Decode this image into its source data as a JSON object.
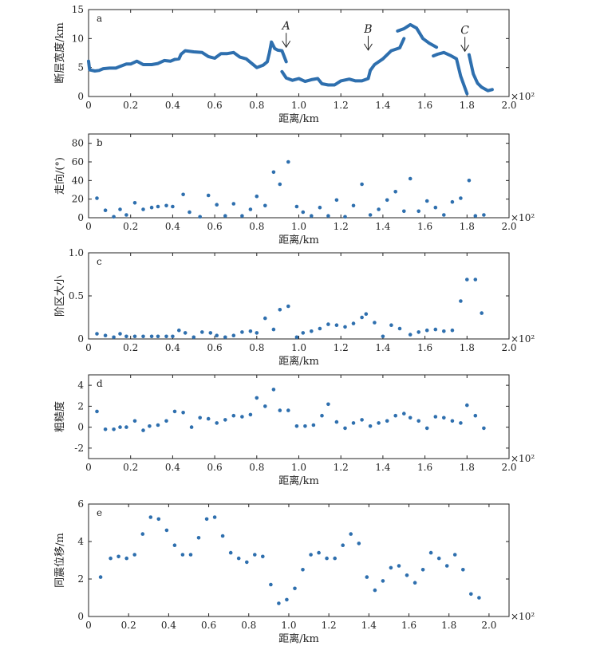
{
  "chart_data": [
    {
      "id": "a",
      "type": "line",
      "panel_letter": "a",
      "ylabel": "断层宽度/km",
      "xlabel": "距离/km",
      "multiplier": "×10²",
      "xlim": [
        0,
        2.0
      ],
      "ylim": [
        0,
        15
      ],
      "xticks": [
        "0",
        "0.2",
        "0.4",
        "0.6",
        "0.8",
        "1.0",
        "1.2",
        "1.4",
        "1.6",
        "1.8",
        "2.0"
      ],
      "yticks": [
        "0",
        "5",
        "10",
        "15"
      ],
      "color": "#2e6fae",
      "annotations": [
        {
          "label": "A",
          "x": 0.94,
          "y": 8.5
        },
        {
          "label": "B",
          "x": 1.33,
          "y": 8.0
        },
        {
          "label": "C",
          "x": 1.79,
          "y": 7.8
        }
      ],
      "series": [
        {
          "points": [
            [
              0.0,
              6.1
            ],
            [
              0.005,
              4.6
            ],
            [
              0.03,
              4.4
            ],
            [
              0.05,
              4.5
            ],
            [
              0.07,
              4.8
            ],
            [
              0.1,
              4.9
            ],
            [
              0.13,
              4.9
            ],
            [
              0.15,
              5.2
            ],
            [
              0.18,
              5.6
            ],
            [
              0.2,
              5.6
            ],
            [
              0.23,
              6.1
            ],
            [
              0.26,
              5.5
            ],
            [
              0.3,
              5.5
            ],
            [
              0.33,
              5.7
            ],
            [
              0.36,
              6.2
            ],
            [
              0.39,
              6.1
            ],
            [
              0.41,
              6.4
            ],
            [
              0.43,
              6.5
            ],
            [
              0.44,
              7.3
            ],
            [
              0.46,
              7.9
            ],
            [
              0.5,
              7.7
            ],
            [
              0.54,
              7.6
            ],
            [
              0.57,
              6.9
            ],
            [
              0.6,
              6.6
            ],
            [
              0.63,
              7.4
            ],
            [
              0.66,
              7.4
            ],
            [
              0.69,
              7.6
            ],
            [
              0.72,
              6.8
            ],
            [
              0.75,
              6.5
            ],
            [
              0.78,
              5.6
            ],
            [
              0.8,
              5.0
            ],
            [
              0.83,
              5.4
            ],
            [
              0.85,
              6.0
            ],
            [
              0.86,
              7.5
            ],
            [
              0.87,
              9.4
            ],
            [
              0.885,
              8.3
            ],
            [
              0.9,
              8.0
            ],
            [
              0.92,
              7.9
            ],
            [
              0.94,
              6.0
            ]
          ]
        },
        {
          "points": [
            [
              0.92,
              4.3
            ],
            [
              0.94,
              3.2
            ],
            [
              0.97,
              2.8
            ],
            [
              1.0,
              3.1
            ],
            [
              1.03,
              2.6
            ],
            [
              1.06,
              2.9
            ],
            [
              1.09,
              3.1
            ],
            [
              1.11,
              2.2
            ],
            [
              1.14,
              2.0
            ],
            [
              1.17,
              2.0
            ],
            [
              1.2,
              2.7
            ],
            [
              1.24,
              3.0
            ],
            [
              1.27,
              2.7
            ],
            [
              1.3,
              2.7
            ],
            [
              1.33,
              3.1
            ],
            [
              1.34,
              4.5
            ]
          ]
        },
        {
          "points": [
            [
              1.34,
              4.5
            ],
            [
              1.36,
              5.5
            ],
            [
              1.4,
              6.5
            ],
            [
              1.44,
              7.9
            ],
            [
              1.48,
              8.4
            ],
            [
              1.5,
              10.0
            ]
          ]
        },
        {
          "points": [
            [
              1.47,
              11.3
            ],
            [
              1.5,
              11.7
            ],
            [
              1.53,
              12.4
            ],
            [
              1.56,
              11.8
            ],
            [
              1.59,
              10.0
            ],
            [
              1.62,
              9.2
            ],
            [
              1.655,
              8.5
            ]
          ]
        },
        {
          "points": [
            [
              1.64,
              7.0
            ],
            [
              1.66,
              7.3
            ],
            [
              1.69,
              7.6
            ],
            [
              1.72,
              7.1
            ],
            [
              1.75,
              6.5
            ],
            [
              1.77,
              3.5
            ],
            [
              1.8,
              0.5
            ]
          ]
        },
        {
          "points": [
            [
              1.81,
              7.2
            ],
            [
              1.83,
              3.9
            ],
            [
              1.85,
              2.3
            ],
            [
              1.87,
              1.6
            ],
            [
              1.9,
              1.0
            ],
            [
              1.92,
              1.2
            ]
          ]
        }
      ]
    },
    {
      "id": "b",
      "type": "scatter",
      "panel_letter": "b",
      "ylabel": "走向/(°)",
      "xlabel": "距离/km",
      "multiplier": "×10²",
      "xlim": [
        0,
        2.0
      ],
      "ylim": [
        0,
        90
      ],
      "xticks": [
        "0",
        "0.2",
        "0.4",
        "0.6",
        "0.8",
        "1.0",
        "1.2",
        "1.4",
        "1.6",
        "1.8",
        "2.0"
      ],
      "yticks": [
        "0",
        "20",
        "40",
        "60",
        "80"
      ],
      "color": "#2e6fae",
      "points": [
        [
          0.04,
          21
        ],
        [
          0.08,
          8
        ],
        [
          0.12,
          1
        ],
        [
          0.15,
          9
        ],
        [
          0.18,
          3
        ],
        [
          0.22,
          16
        ],
        [
          0.26,
          9
        ],
        [
          0.3,
          11
        ],
        [
          0.33,
          12
        ],
        [
          0.37,
          13
        ],
        [
          0.4,
          12
        ],
        [
          0.45,
          25
        ],
        [
          0.48,
          6
        ],
        [
          0.53,
          1
        ],
        [
          0.57,
          24
        ],
        [
          0.61,
          14
        ],
        [
          0.65,
          2
        ],
        [
          0.69,
          15
        ],
        [
          0.73,
          2
        ],
        [
          0.77,
          9
        ],
        [
          0.8,
          23
        ],
        [
          0.84,
          13
        ],
        [
          0.88,
          49
        ],
        [
          0.91,
          36
        ],
        [
          0.95,
          60
        ],
        [
          0.99,
          12
        ],
        [
          1.02,
          6
        ],
        [
          1.06,
          2
        ],
        [
          1.1,
          11
        ],
        [
          1.14,
          2
        ],
        [
          1.18,
          19
        ],
        [
          1.22,
          1
        ],
        [
          1.26,
          13
        ],
        [
          1.3,
          36
        ],
        [
          1.34,
          3
        ],
        [
          1.38,
          9
        ],
        [
          1.42,
          19
        ],
        [
          1.46,
          28
        ],
        [
          1.5,
          7
        ],
        [
          1.53,
          42
        ],
        [
          1.57,
          7
        ],
        [
          1.61,
          18
        ],
        [
          1.65,
          11
        ],
        [
          1.69,
          3
        ],
        [
          1.73,
          17
        ],
        [
          1.77,
          21
        ],
        [
          1.81,
          40
        ],
        [
          1.84,
          2
        ],
        [
          1.88,
          3
        ]
      ]
    },
    {
      "id": "c",
      "type": "scatter",
      "panel_letter": "c",
      "ylabel": "阶区大小",
      "xlabel": "距离/km",
      "multiplier": "×10²",
      "xlim": [
        0,
        2.0
      ],
      "ylim": [
        0,
        1.0
      ],
      "xticks": [
        "0",
        "0.2",
        "0.4",
        "0.6",
        "0.8",
        "1.0",
        "1.2",
        "1.4",
        "1.6",
        "1.8",
        "2.0"
      ],
      "yticks": [
        "0",
        "0.5",
        "1.0"
      ],
      "color": "#2e6fae",
      "points": [
        [
          0.04,
          0.06
        ],
        [
          0.08,
          0.04
        ],
        [
          0.12,
          0.02
        ],
        [
          0.15,
          0.06
        ],
        [
          0.18,
          0.03
        ],
        [
          0.22,
          0.03
        ],
        [
          0.26,
          0.03
        ],
        [
          0.3,
          0.03
        ],
        [
          0.33,
          0.03
        ],
        [
          0.37,
          0.03
        ],
        [
          0.4,
          0.03
        ],
        [
          0.43,
          0.1
        ],
        [
          0.46,
          0.07
        ],
        [
          0.5,
          0.02
        ],
        [
          0.54,
          0.08
        ],
        [
          0.58,
          0.07
        ],
        [
          0.61,
          0.04
        ],
        [
          0.65,
          0.02
        ],
        [
          0.69,
          0.04
        ],
        [
          0.73,
          0.08
        ],
        [
          0.77,
          0.09
        ],
        [
          0.8,
          0.07
        ],
        [
          0.84,
          0.24
        ],
        [
          0.88,
          0.11
        ],
        [
          0.91,
          0.34
        ],
        [
          0.95,
          0.38
        ],
        [
          0.99,
          0.02
        ],
        [
          1.02,
          0.07
        ],
        [
          1.06,
          0.09
        ],
        [
          1.1,
          0.12
        ],
        [
          1.14,
          0.17
        ],
        [
          1.18,
          0.16
        ],
        [
          1.22,
          0.14
        ],
        [
          1.26,
          0.18
        ],
        [
          1.3,
          0.25
        ],
        [
          1.32,
          0.29
        ],
        [
          1.36,
          0.19
        ],
        [
          1.4,
          0.03
        ],
        [
          1.44,
          0.16
        ],
        [
          1.48,
          0.12
        ],
        [
          1.53,
          0.05
        ],
        [
          1.57,
          0.08
        ],
        [
          1.61,
          0.1
        ],
        [
          1.65,
          0.11
        ],
        [
          1.69,
          0.09
        ],
        [
          1.73,
          0.1
        ],
        [
          1.77,
          0.44
        ],
        [
          1.8,
          0.69
        ],
        [
          1.84,
          0.69
        ],
        [
          1.87,
          0.3
        ]
      ]
    },
    {
      "id": "d",
      "type": "scatter",
      "panel_letter": "d",
      "ylabel": "粗糙度",
      "xlabel": "距离/km",
      "multiplier": "×10²",
      "xlim": [
        0,
        2.0
      ],
      "ylim": [
        -3,
        5
      ],
      "xticks": [
        "0",
        "0.2",
        "0.4",
        "0.6",
        "0.8",
        "1.0",
        "1.2",
        "1.4",
        "1.6",
        "1.8",
        "2.0"
      ],
      "yticks": [
        "-2",
        "0",
        "2",
        "4"
      ],
      "color": "#2e6fae",
      "points": [
        [
          0.04,
          1.5
        ],
        [
          0.08,
          -0.2
        ],
        [
          0.12,
          -0.2
        ],
        [
          0.15,
          0.0
        ],
        [
          0.18,
          0.0
        ],
        [
          0.22,
          0.6
        ],
        [
          0.26,
          -0.3
        ],
        [
          0.29,
          0.1
        ],
        [
          0.33,
          0.2
        ],
        [
          0.37,
          0.6
        ],
        [
          0.41,
          1.5
        ],
        [
          0.45,
          1.4
        ],
        [
          0.49,
          0.0
        ],
        [
          0.53,
          0.9
        ],
        [
          0.57,
          0.8
        ],
        [
          0.61,
          0.4
        ],
        [
          0.65,
          0.7
        ],
        [
          0.69,
          1.1
        ],
        [
          0.73,
          1.0
        ],
        [
          0.77,
          1.2
        ],
        [
          0.8,
          2.8
        ],
        [
          0.84,
          2.0
        ],
        [
          0.88,
          3.6
        ],
        [
          0.91,
          1.6
        ],
        [
          0.95,
          1.6
        ],
        [
          0.99,
          0.1
        ],
        [
          1.03,
          0.1
        ],
        [
          1.07,
          0.2
        ],
        [
          1.11,
          1.1
        ],
        [
          1.14,
          2.2
        ],
        [
          1.18,
          0.5
        ],
        [
          1.22,
          -0.1
        ],
        [
          1.26,
          0.4
        ],
        [
          1.3,
          0.7
        ],
        [
          1.34,
          0.1
        ],
        [
          1.38,
          0.4
        ],
        [
          1.42,
          0.6
        ],
        [
          1.46,
          1.1
        ],
        [
          1.5,
          1.3
        ],
        [
          1.53,
          0.9
        ],
        [
          1.57,
          0.6
        ],
        [
          1.61,
          -0.1
        ],
        [
          1.65,
          1.0
        ],
        [
          1.69,
          0.9
        ],
        [
          1.73,
          0.6
        ],
        [
          1.77,
          0.4
        ],
        [
          1.8,
          2.1
        ],
        [
          1.84,
          1.1
        ],
        [
          1.88,
          -0.1
        ]
      ]
    },
    {
      "id": "e",
      "type": "scatter",
      "panel_letter": "e",
      "ylabel": "同震位移/m",
      "xlabel": "距离/km",
      "multiplier": "×10²",
      "xlim": [
        0,
        2.1
      ],
      "ylim": [
        0,
        6
      ],
      "xticks": [
        "0",
        "0.2",
        "0.4",
        "0.6",
        "0.8",
        "1.0",
        "1.2",
        "1.4",
        "1.6",
        "1.8",
        "2.0"
      ],
      "yticks": [
        "0",
        "2",
        "4",
        "6"
      ],
      "color": "#2e6fae",
      "points": [
        [
          0.06,
          2.1
        ],
        [
          0.11,
          3.1
        ],
        [
          0.15,
          3.2
        ],
        [
          0.19,
          3.1
        ],
        [
          0.23,
          3.3
        ],
        [
          0.27,
          4.4
        ],
        [
          0.31,
          5.3
        ],
        [
          0.35,
          5.2
        ],
        [
          0.39,
          4.6
        ],
        [
          0.43,
          3.8
        ],
        [
          0.47,
          3.3
        ],
        [
          0.51,
          3.3
        ],
        [
          0.55,
          4.2
        ],
        [
          0.59,
          5.2
        ],
        [
          0.63,
          5.3
        ],
        [
          0.67,
          4.3
        ],
        [
          0.71,
          3.4
        ],
        [
          0.75,
          3.1
        ],
        [
          0.79,
          2.9
        ],
        [
          0.83,
          3.3
        ],
        [
          0.87,
          3.2
        ],
        [
          0.91,
          1.7
        ],
        [
          0.95,
          0.7
        ],
        [
          0.99,
          0.9
        ],
        [
          1.03,
          1.5
        ],
        [
          1.07,
          2.5
        ],
        [
          1.11,
          3.3
        ],
        [
          1.15,
          3.4
        ],
        [
          1.19,
          3.1
        ],
        [
          1.23,
          3.1
        ],
        [
          1.27,
          3.8
        ],
        [
          1.31,
          4.4
        ],
        [
          1.35,
          3.9
        ],
        [
          1.39,
          2.1
        ],
        [
          1.43,
          1.4
        ],
        [
          1.47,
          1.9
        ],
        [
          1.51,
          2.6
        ],
        [
          1.55,
          2.7
        ],
        [
          1.59,
          2.2
        ],
        [
          1.63,
          1.8
        ],
        [
          1.67,
          2.5
        ],
        [
          1.71,
          3.4
        ],
        [
          1.75,
          3.1
        ],
        [
          1.79,
          2.7
        ],
        [
          1.83,
          3.3
        ],
        [
          1.87,
          2.5
        ],
        [
          1.91,
          1.2
        ],
        [
          1.95,
          1.0
        ]
      ]
    }
  ]
}
